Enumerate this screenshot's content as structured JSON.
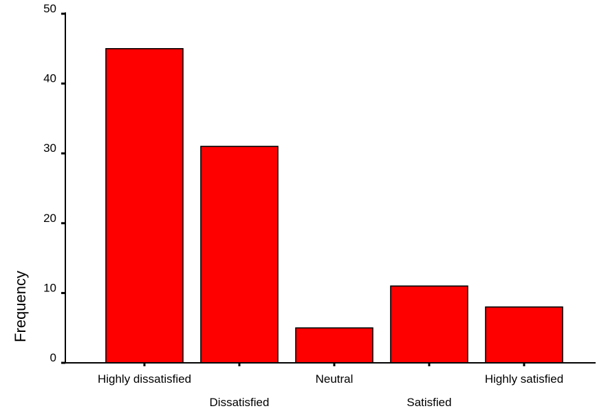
{
  "chart_data": {
    "type": "bar",
    "title": "",
    "xlabel": "",
    "ylabel": "Frequency",
    "categories": [
      "Highly dissatisfied",
      "Dissatisfied",
      "Neutral",
      "Satisfied",
      "Highly satisfied"
    ],
    "values": [
      45,
      31,
      5,
      11,
      8
    ],
    "ylim": [
      0,
      50
    ],
    "yticks": [
      0,
      10,
      20,
      30,
      40,
      50
    ],
    "grid": false,
    "legend": "none",
    "bar_color": "#ff0000",
    "edge_color": "#000000"
  }
}
